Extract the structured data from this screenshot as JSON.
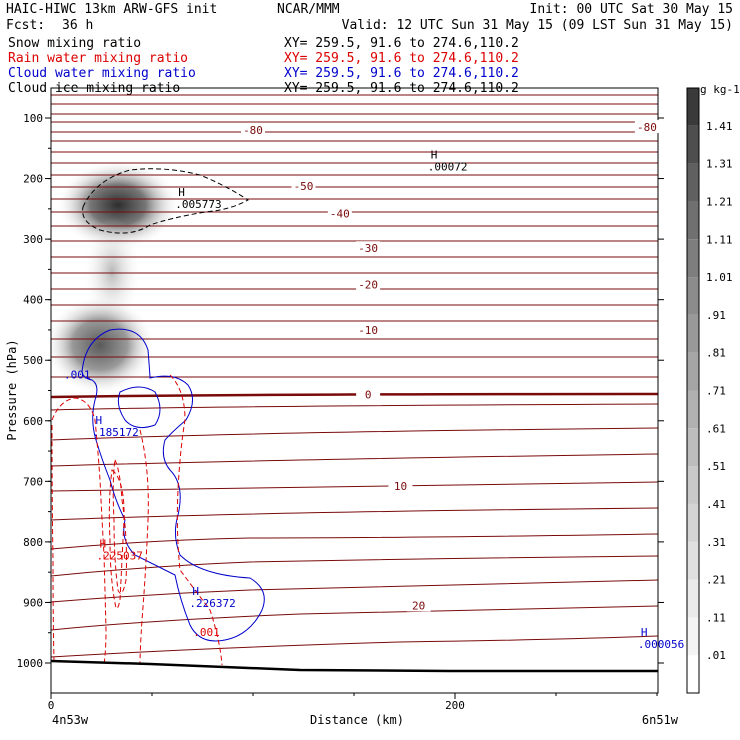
{
  "header": {
    "row1_left": "HAIC-HIWC 13km ARW-GFS init",
    "row1_mid": "NCAR/MMM",
    "row1_right": "Init: 00 UTC Sat 30 May 15",
    "row2_left": "Fcst:",
    "row2_hours": "36 h",
    "row2_right": "Valid: 12 UTC Sun 31 May 15 (09 LST Sun 31 May 15)"
  },
  "fields": [
    {
      "name": "Snow mixing ratio",
      "xy": "XY= 259.5, 91.6 to 274.6,110.2",
      "color": "#000000"
    },
    {
      "name": "Rain water mixing ratio",
      "xy": "XY= 259.5, 91.6 to 274.6,110.2",
      "color": "#dd0000"
    },
    {
      "name": "Cloud water mixing ratio",
      "xy": "XY= 259.5, 91.6 to 274.6,110.2",
      "color": "#0000cc"
    },
    {
      "name": "Cloud ice mixing ratio",
      "xy": "XY= 259.5, 91.6 to 274.6,110.2",
      "color": "#000000"
    }
  ],
  "chart_data": {
    "type": "cross-section contour",
    "ylabel": "Pressure (hPa)",
    "xlabel": "Distance (km)",
    "xlim": [
      0,
      300
    ],
    "ylim": [
      1030,
      60
    ],
    "x_ticks": [
      {
        "value": 0,
        "label": "0"
      },
      {
        "value": 200,
        "label": "200"
      }
    ],
    "y_ticks": [
      {
        "value": 100,
        "label": "100"
      },
      {
        "value": 200,
        "label": "200"
      },
      {
        "value": 300,
        "label": "300"
      },
      {
        "value": 400,
        "label": "400"
      },
      {
        "value": 500,
        "label": "500"
      },
      {
        "value": 600,
        "label": "600"
      },
      {
        "value": 700,
        "label": "700"
      },
      {
        "value": 800,
        "label": "800"
      },
      {
        "value": 900,
        "label": "900"
      },
      {
        "value": 1000,
        "label": "1000"
      }
    ],
    "endpoints": {
      "left": "4n53w",
      "right": "6n51w"
    },
    "colorbar": {
      "unit": "g kg-1",
      "levels": [
        ".01",
        ".11",
        ".21",
        ".31",
        ".41",
        ".51",
        ".61",
        ".71",
        ".81",
        ".91",
        "1.01",
        "1.11",
        "1.21",
        "1.31",
        "1.41"
      ],
      "colors": [
        "#ffffff",
        "#f4f4f4",
        "#ebebeb",
        "#e0e0e0",
        "#d4d4d4",
        "#c9c9c9",
        "#bdbdbd",
        "#b1b1b1",
        "#a5a5a5",
        "#999999",
        "#8c8c8c",
        "#7e7e7e",
        "#707070",
        "#606060",
        "#4e4e4e",
        "#3a3a3a"
      ]
    },
    "temperature_labels": [
      {
        "text": "-80",
        "x": 100,
        "p": 120
      },
      {
        "text": "-80",
        "x": 295,
        "p": 115
      },
      {
        "text": "-50",
        "x": 125,
        "p": 212
      },
      {
        "text": "-40",
        "x": 143,
        "p": 258
      },
      {
        "text": "-30",
        "x": 157,
        "p": 315
      },
      {
        "text": "-20",
        "x": 157,
        "p": 375
      },
      {
        "text": "-10",
        "x": 157,
        "p": 450
      },
      {
        "text": "0",
        "x": 157,
        "p": 557
      },
      {
        "text": "10",
        "x": 173,
        "p": 708
      },
      {
        "text": "20",
        "x": 182,
        "p": 905
      }
    ],
    "maxima": [
      {
        "label": ".005773",
        "x": 63,
        "p": 245,
        "color": "#000000"
      },
      {
        "label": ".00072",
        "x": 188,
        "p": 183,
        "color": "#000000"
      },
      {
        "label": ".185172",
        "x": 22,
        "p": 622,
        "color": "#0000cc"
      },
      {
        "label": ".225037",
        "x": 24,
        "p": 826,
        "color": "#dd0000"
      },
      {
        "label": ".226372",
        "x": 70,
        "p": 904,
        "color": "#0000cc"
      },
      {
        "label": ".000056",
        "x": 292,
        "p": 972,
        "color": "#0000cc"
      }
    ],
    "contour_labels": [
      {
        "text": ".001",
        "x": 13,
        "p": 530,
        "color": "#0000cc"
      },
      {
        "text": ".001",
        "x": 77,
        "p": 955,
        "color": "#dd0000"
      }
    ]
  }
}
